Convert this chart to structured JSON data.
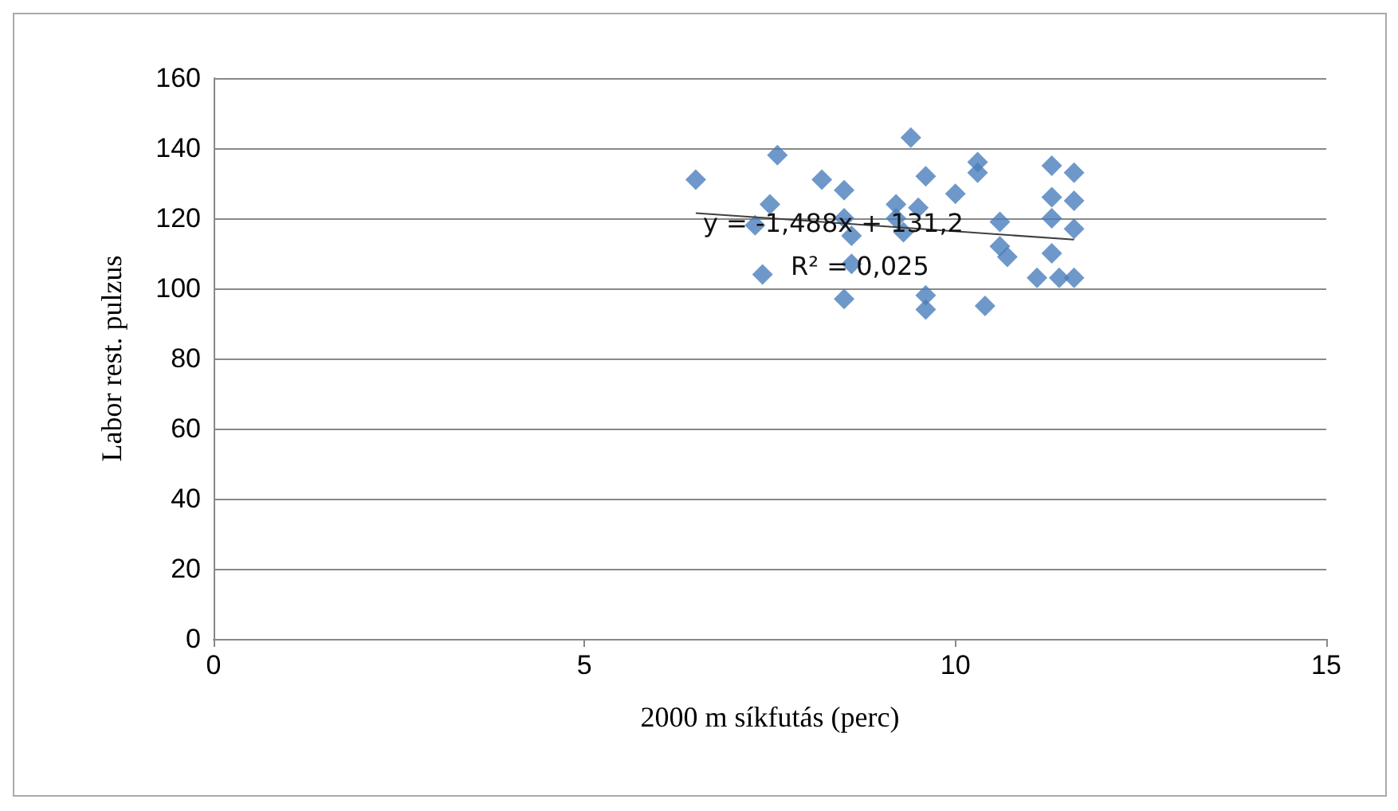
{
  "chart_data": {
    "type": "scatter",
    "xlabel": "2000 m síkfutás (perc)",
    "ylabel": "Labor rest. pulzus",
    "xlim": [
      0,
      15
    ],
    "xticks": [
      0,
      5,
      10,
      15
    ],
    "ylim": [
      0,
      160
    ],
    "yticks": [
      0,
      20,
      40,
      60,
      80,
      100,
      120,
      140,
      160
    ],
    "grid": "y",
    "annotations": [
      "y = -1,488x + 131,2",
      "R² = 0,025"
    ],
    "series": [
      {
        "marker": "diamond",
        "color": "#4a7ebb",
        "x": [
          6.5,
          7.6,
          8.2,
          7.5,
          7.3,
          7.4,
          8.5,
          8.5,
          8.6,
          8.6,
          8.5,
          9.4,
          9.6,
          9.2,
          9.3,
          9.5,
          9.6,
          9.6,
          10.3,
          10.3,
          10.0,
          10.6,
          10.6,
          10.7,
          10.4,
          11.3,
          11.6,
          11.3,
          11.6,
          11.3,
          11.6,
          11.3,
          11.1,
          11.4,
          11.6,
          9.2
        ],
        "values": [
          131,
          138,
          131,
          124,
          118,
          104,
          128,
          120,
          115,
          107,
          97,
          143,
          132,
          124,
          116,
          123,
          98,
          94,
          136,
          133,
          127,
          119,
          112,
          109,
          95,
          135,
          133,
          126,
          125,
          120,
          117,
          110,
          103,
          103,
          103,
          120
        ]
      },
      {
        "type": "line",
        "marker": "none",
        "color": "#404040",
        "x": [
          6.5,
          11.6
        ],
        "values": [
          121.5,
          113.9
        ]
      }
    ]
  }
}
